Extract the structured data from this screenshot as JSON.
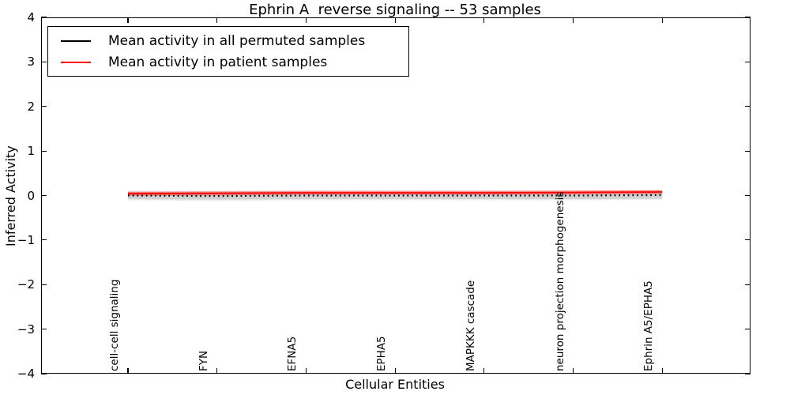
{
  "chart_data": {
    "type": "line",
    "title": "Ephrin A  reverse signaling -- 53 samples",
    "xlabel": "Cellular Entities",
    "ylabel": "Inferred Activity",
    "ylim": [
      -4,
      4
    ],
    "yticks": [
      4,
      3,
      2,
      1,
      0,
      -1,
      -2,
      -3,
      -4
    ],
    "grid": false,
    "legend_position": "upper left",
    "categories": [
      "cell-cell signaling",
      "FYN",
      "EFNA5",
      "EPHA5",
      "MAPKKK cascade",
      "neuron projection morphogenesis",
      "Ephrin A5/EPHA5"
    ],
    "series": [
      {
        "name": "Mean activity in all permuted samples",
        "color": "#000000",
        "line_style": "dotted",
        "values": [
          0.0,
          -0.01,
          0.0,
          0.0,
          0.0,
          0.0,
          0.01
        ]
      },
      {
        "name": "Mean activity in patient samples",
        "color": "#ff0000",
        "line_style": "solid",
        "values": [
          0.04,
          0.05,
          0.06,
          0.06,
          0.06,
          0.07,
          0.08
        ]
      }
    ],
    "bands": [
      {
        "follows": "Mean activity in all permuted samples",
        "halfwidth": 0.08,
        "color": "#aaaaaa",
        "opacity": 0.4
      },
      {
        "follows": "Mean activity in patient samples",
        "halfwidth": 0.05,
        "color": "#ff0000",
        "opacity": 0.22
      }
    ]
  }
}
